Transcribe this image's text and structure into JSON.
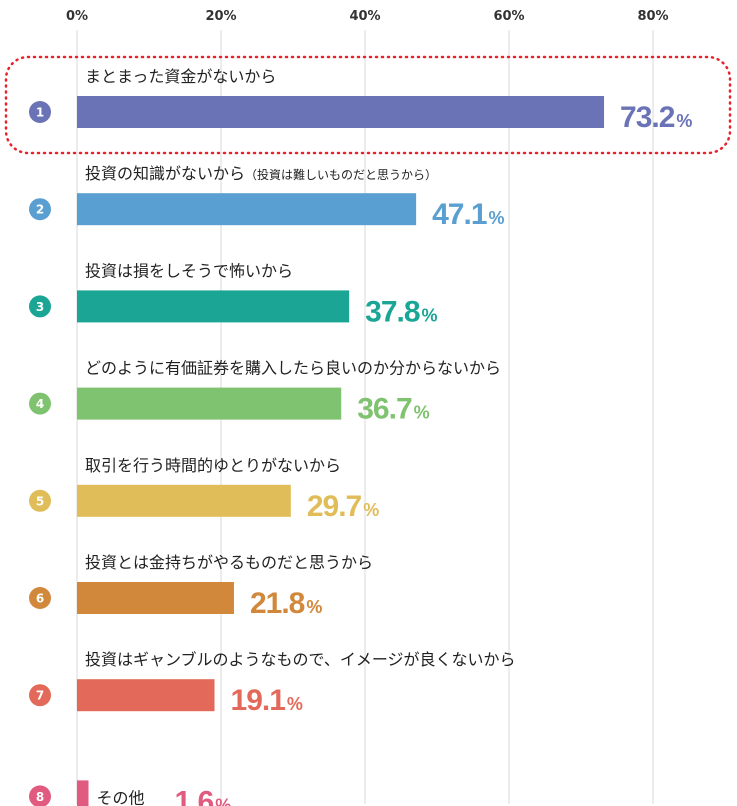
{
  "chart_data": {
    "type": "bar",
    "orientation": "horizontal",
    "x_ticks": [
      "0%",
      "20%",
      "40%",
      "60%",
      "80%"
    ],
    "xlim": [
      0,
      90
    ],
    "grid": true,
    "value_suffix": "%",
    "highlight_index": 0,
    "categories": [
      {
        "rank": "1",
        "label": "まとまった資金がないから",
        "sub": "",
        "value": 73.2,
        "value_text": "73.2",
        "color": "#6a73b6"
      },
      {
        "rank": "2",
        "label": "投資の知識がないから",
        "sub": "（投資は難しいものだと思うから）",
        "value": 47.1,
        "value_text": "47.1",
        "color": "#5a9fd1"
      },
      {
        "rank": "3",
        "label": "投資は損をしそうで怖いから",
        "sub": "",
        "value": 37.8,
        "value_text": "37.8",
        "color": "#1aa595"
      },
      {
        "rank": "4",
        "label": "どのように有価証券を購入したら良いのか分からないから",
        "sub": "",
        "value": 36.7,
        "value_text": "36.7",
        "color": "#7fc26f"
      },
      {
        "rank": "5",
        "label": "取引を行う時間的ゆとりがないから",
        "sub": "",
        "value": 29.7,
        "value_text": "29.7",
        "color": "#e0bd58"
      },
      {
        "rank": "6",
        "label": "投資とは金持ちがやるものだと思うから",
        "sub": "",
        "value": 21.8,
        "value_text": "21.8",
        "color": "#d1883b"
      },
      {
        "rank": "7",
        "label": "投資はギャンブルのようなもので、イメージが良くないから",
        "sub": "",
        "value": 19.1,
        "value_text": "19.1",
        "color": "#e36a5a"
      },
      {
        "rank": "8",
        "label": "その他",
        "sub": "",
        "value": 1.6,
        "value_text": "1.6",
        "color": "#e05b7f"
      }
    ]
  }
}
